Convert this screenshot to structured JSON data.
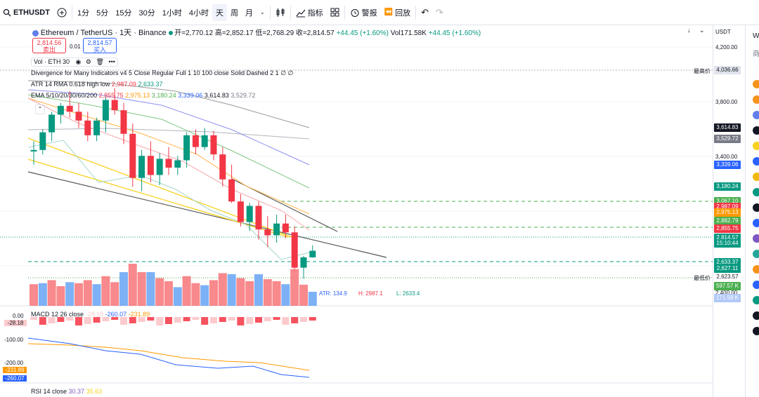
{
  "toolbar": {
    "symbol": "ETHUSDT",
    "intervals": [
      "1分",
      "5分",
      "15分",
      "30分",
      "1小时",
      "4小时",
      "天",
      "周",
      "月"
    ],
    "indicators": "指标",
    "alert": "警报",
    "replay": "回放"
  },
  "legend": {
    "title": "Ethereum / TetherUS · 1天 · Binance",
    "open": "开=2,770.12",
    "high": "高=2,852.17",
    "low": "低=2,768.29",
    "close": "收=2,814.57",
    "change": "+44.45 (+1.60%)",
    "vol": "Vol171.58K",
    "vol_change": "+44.45 (+1.60%)"
  },
  "sell": {
    "price": "2,814.56",
    "label": "卖出"
  },
  "buy": {
    "price": "2,814.57",
    "label": "买入"
  },
  "spread": "0.01",
  "indicators": {
    "vol": "Vol · ETH 30",
    "divergence": "Divergence for Many Indicators v4 5 Close Regular Full 1 10 100 close Solid Dashed 2 1 ∅ ∅",
    "atr_label": "ATR 14 RMA 0.618 high low",
    "atr_v1": "2,987.09",
    "atr_v2": "2,633.37",
    "ema_label": "EMA 5/10/20/30/60/200",
    "ema_values": [
      "2,855.75",
      "2,975.13",
      "3,180.24",
      "3,339.06",
      "3,614.83",
      "3,529.72"
    ],
    "atr_text": "ATR: 134.9",
    "h_text": "H: 2987.1",
    "l_text": "L: 2633.4",
    "macd_label": "MACD 12 26 close",
    "macd_v1": "-28.18",
    "macd_v2": "-260.07",
    "macd_v3": "-231.89",
    "rsi_label": "RSI 14 close",
    "rsi_v1": "30.37",
    "rsi_v2": "35.63"
  },
  "scale": {
    "currency": "USDT",
    "ticks": [
      "4,200.00",
      "3,800.00",
      "3,400.00",
      "2,400.00"
    ],
    "high_label": "最高价",
    "high_value": "4,036.66",
    "low_label": "最低价",
    "low_value": "2,623.57",
    "price_labels": [
      {
        "v": "3,614.83",
        "c": "#131722"
      },
      {
        "v": "3,529.72",
        "c": "#787b86"
      },
      {
        "v": "3,339.06",
        "c": "#2962ff"
      },
      {
        "v": "3,180.24",
        "c": "#089981"
      },
      {
        "v": "3,067.10",
        "c": "#4caf50"
      },
      {
        "v": "2,987.09",
        "c": "#f23645"
      },
      {
        "v": "2,975.13",
        "c": "#ff9800"
      },
      {
        "v": "2,882.79",
        "c": "#4caf50"
      },
      {
        "v": "2,855.75",
        "c": "#f23645"
      },
      {
        "v": "2,814.57",
        "c": "#089981"
      },
      {
        "v": "15:10:44",
        "c": "#089981"
      },
      {
        "v": "2,633.37",
        "c": "#089981"
      },
      {
        "v": "2,627.11",
        "c": "#089981"
      },
      {
        "v": "597.57 K",
        "c": "#4caf50"
      },
      {
        "v": "171.58 K",
        "c": "#b2c9f7"
      }
    ],
    "macd_ticks": [
      "0.00",
      "-100.00",
      "-200.00"
    ],
    "macd_labels": [
      {
        "v": "-28.18",
        "c": "#fccbcd"
      },
      {
        "v": "-231.89",
        "c": "#ff9800"
      },
      {
        "v": "-260.07",
        "c": "#2962ff"
      }
    ]
  },
  "right_panel": {
    "label1": "Wa",
    "label2": "商"
  },
  "colors": {
    "up": "#089981",
    "down": "#f23645"
  },
  "chart_data": {
    "type": "candlestick",
    "candles": [
      [
        3490,
        3560,
        3400,
        3500
      ],
      [
        3500,
        3640,
        3470,
        3620
      ],
      [
        3620,
        3760,
        3560,
        3740
      ],
      [
        3740,
        3820,
        3680,
        3800
      ],
      [
        3800,
        3900,
        3720,
        3760
      ],
      [
        3760,
        3820,
        3650,
        3700
      ],
      [
        3700,
        3760,
        3560,
        3600
      ],
      [
        3600,
        3720,
        3560,
        3700
      ],
      [
        3700,
        3860,
        3620,
        3840
      ],
      [
        3840,
        3920,
        3740,
        3770
      ],
      [
        3770,
        3820,
        3540,
        3610
      ],
      [
        3610,
        3680,
        3250,
        3310
      ],
      [
        3310,
        3500,
        3220,
        3460
      ],
      [
        3460,
        3560,
        3280,
        3330
      ],
      [
        3330,
        3480,
        3260,
        3440
      ],
      [
        3440,
        3520,
        3330,
        3380
      ],
      [
        3380,
        3460,
        3330,
        3430
      ],
      [
        3430,
        3620,
        3380,
        3600
      ],
      [
        3600,
        3640,
        3470,
        3520
      ],
      [
        3520,
        3650,
        3500,
        3600
      ],
      [
        3600,
        3630,
        3430,
        3470
      ],
      [
        3470,
        3520,
        3250,
        3300
      ],
      [
        3300,
        3400,
        3140,
        3150
      ],
      [
        3150,
        3200,
        2980,
        3010
      ],
      [
        3010,
        3140,
        2950,
        3120
      ],
      [
        3120,
        3150,
        2890,
        2960
      ],
      [
        2960,
        3050,
        2840,
        2920
      ],
      [
        2920,
        3060,
        2870,
        3000
      ],
      [
        3000,
        3060,
        2900,
        2940
      ],
      [
        2940,
        2980,
        2670,
        2700
      ],
      [
        2700,
        2780,
        2625,
        2770
      ],
      [
        2770,
        2852,
        2768,
        2815
      ]
    ]
  }
}
